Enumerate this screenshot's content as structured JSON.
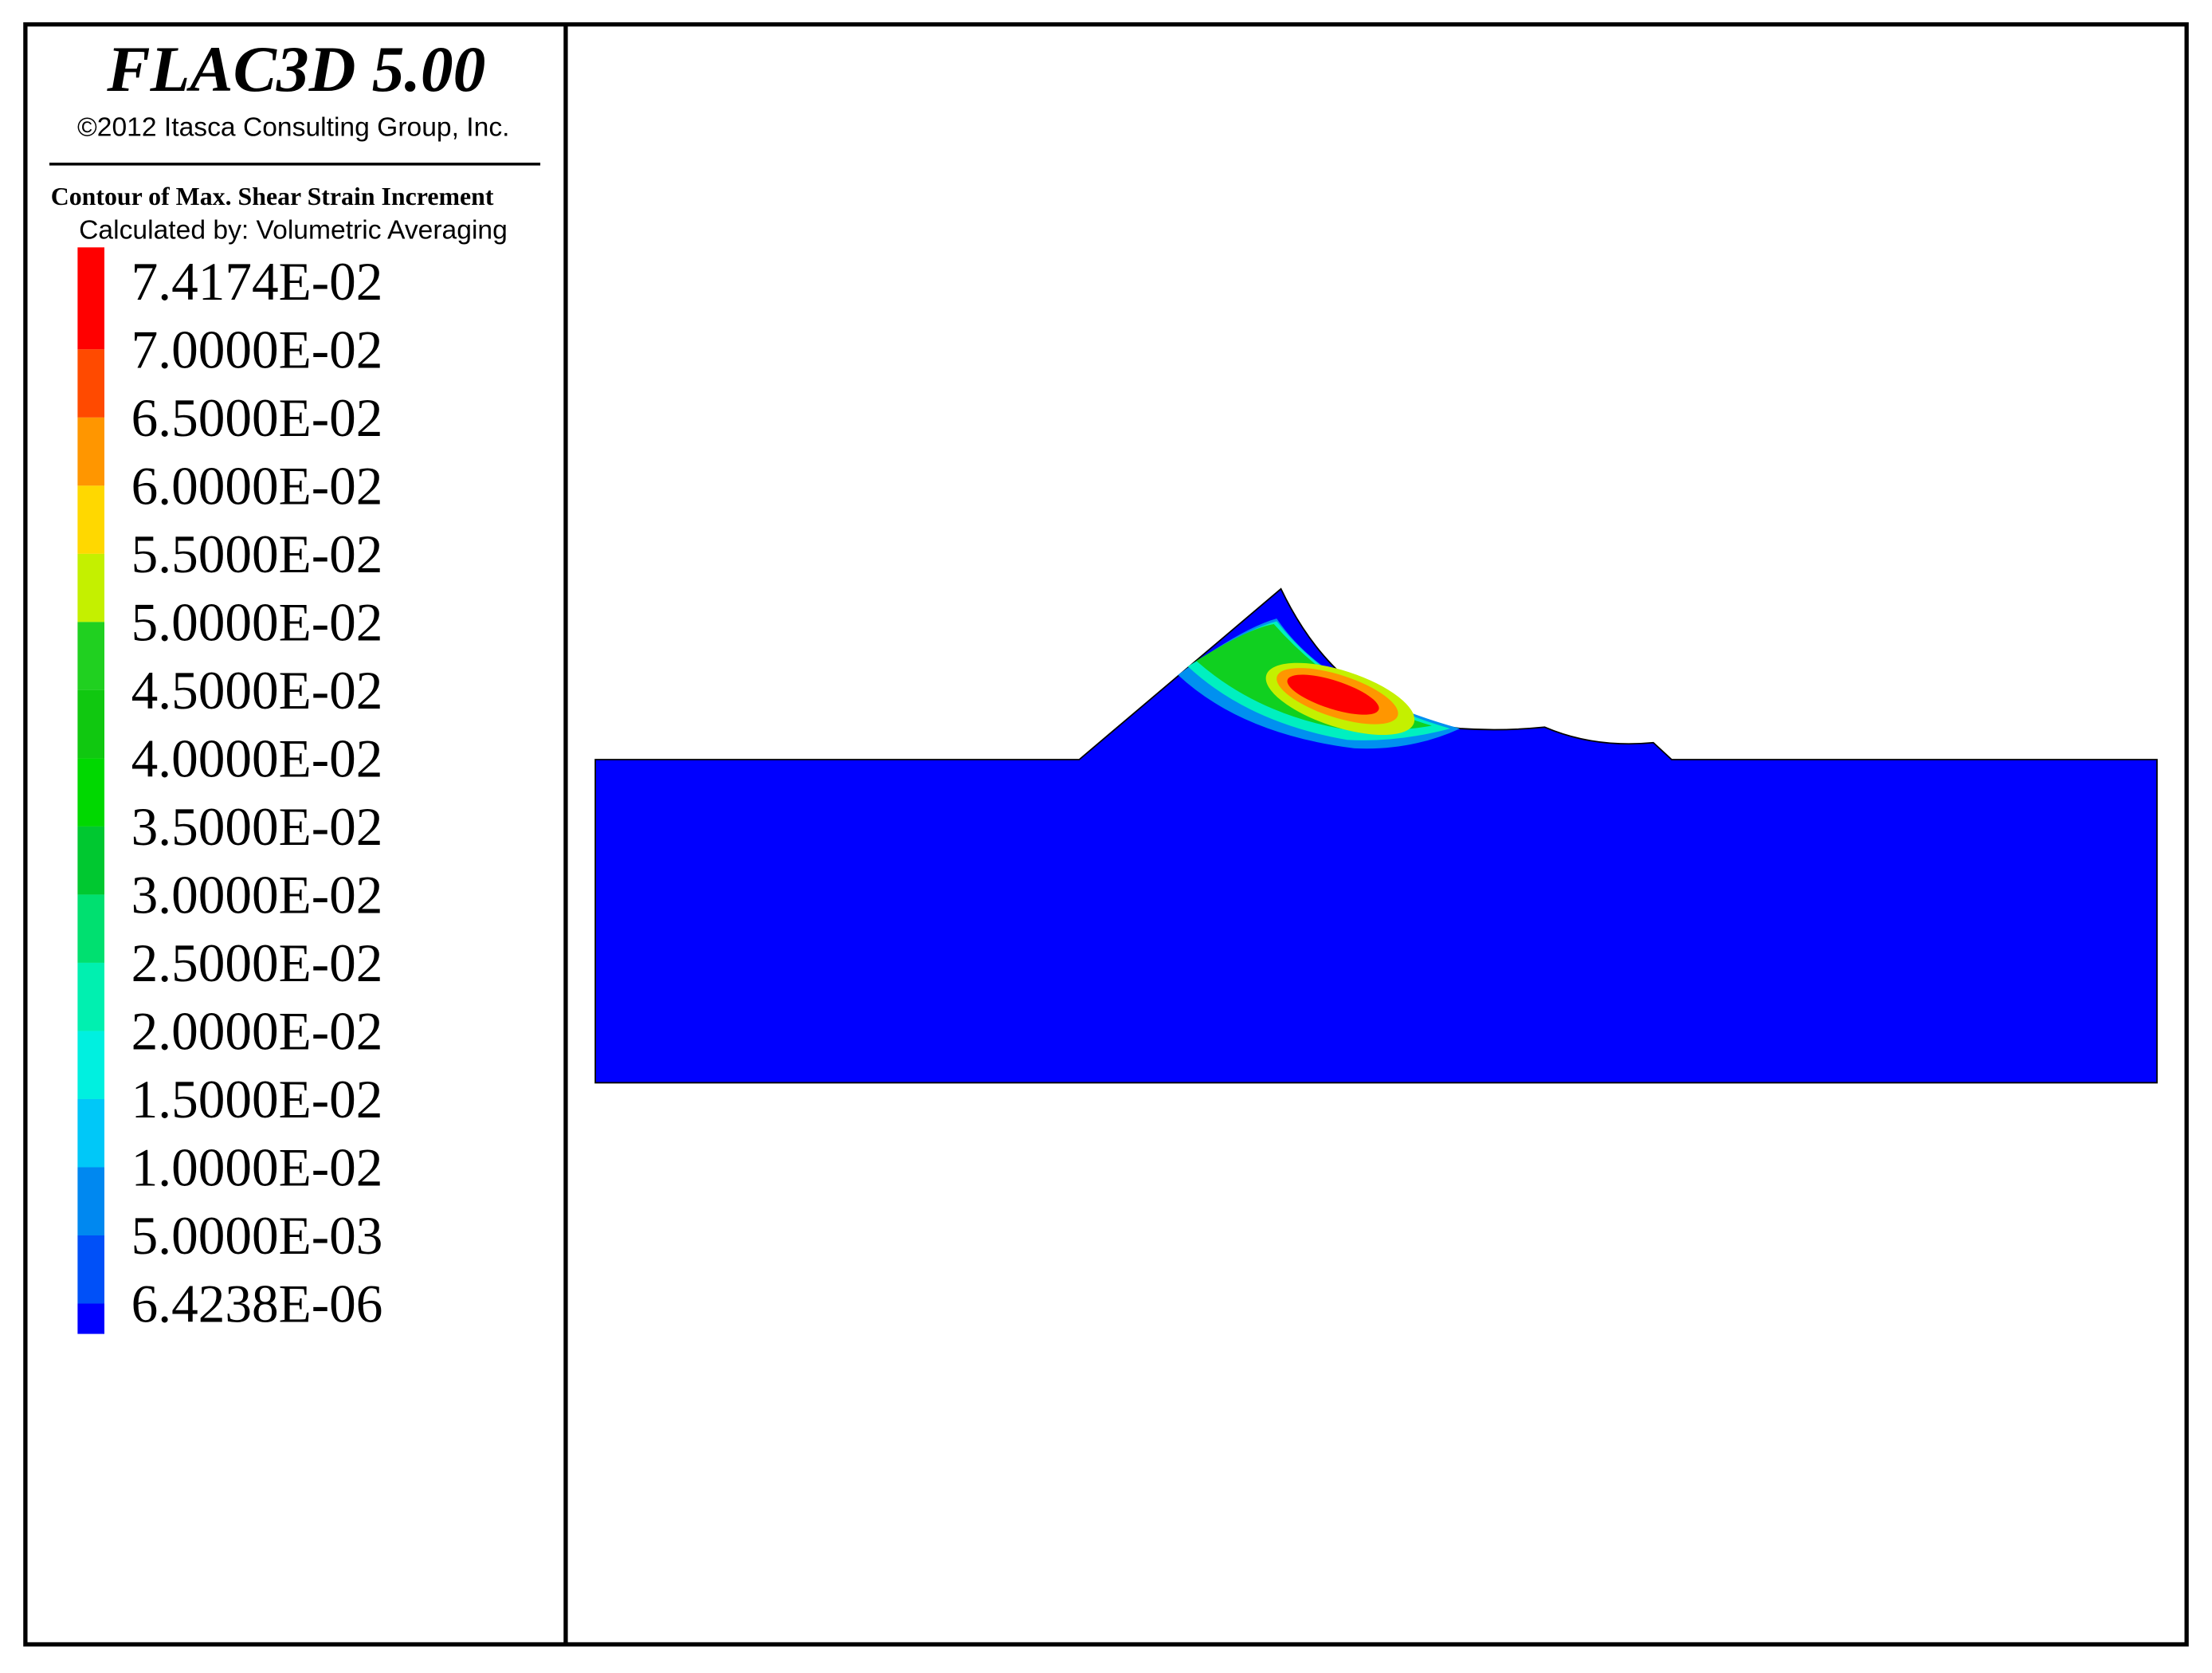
{
  "header": {
    "title": "FLAC3D 5.00",
    "copyright": "©2012 Itasca Consulting Group, Inc."
  },
  "legend": {
    "title": "Contour of Max. Shear Strain Increment",
    "subtitle": "Calculated by: Volumetric Averaging",
    "levels": [
      "7.4174E-02",
      "7.0000E-02",
      "6.5000E-02",
      "6.0000E-02",
      "5.5000E-02",
      "5.0000E-02",
      "4.5000E-02",
      "4.0000E-02",
      "3.5000E-02",
      "3.0000E-02",
      "2.5000E-02",
      "2.0000E-02",
      "1.5000E-02",
      "1.0000E-02",
      "5.0000E-03",
      "6.4238E-06"
    ],
    "colors": [
      "#ff0000",
      "#ff4a00",
      "#ff9600",
      "#ffd800",
      "#c4f000",
      "#20d020",
      "#10c810",
      "#00d800",
      "#00c830",
      "#00e070",
      "#00f0b0",
      "#00f0e0",
      "#00c8f8",
      "#0088f0",
      "#0050f8",
      "#0000ff"
    ]
  }
}
